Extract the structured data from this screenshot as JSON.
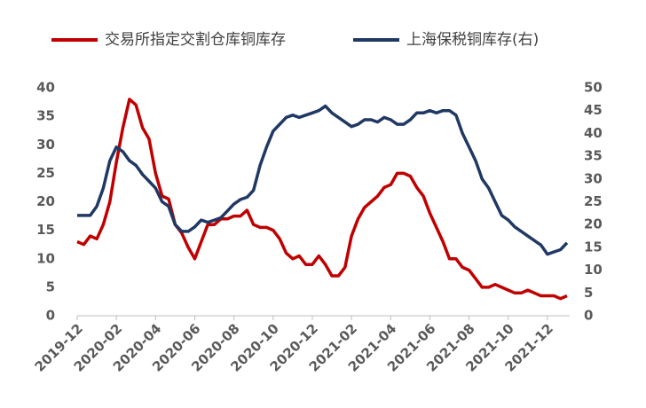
{
  "chart_data": {
    "type": "line",
    "categories": [
      "2019-12",
      null,
      null,
      null,
      null,
      null,
      "2020-02",
      null,
      null,
      null,
      null,
      null,
      "2020-04",
      null,
      null,
      null,
      null,
      null,
      "2020-06",
      null,
      null,
      null,
      null,
      null,
      "2020-08",
      null,
      null,
      null,
      null,
      null,
      "2020-10",
      null,
      null,
      null,
      null,
      null,
      "2020-12",
      null,
      null,
      null,
      null,
      null,
      "2021-02",
      null,
      null,
      null,
      null,
      null,
      "2021-04",
      null,
      null,
      null,
      null,
      null,
      "2021-06",
      null,
      null,
      null,
      null,
      null,
      "2021-08",
      null,
      null,
      null,
      null,
      null,
      "2021-10",
      null,
      null,
      null,
      null,
      null,
      "2021-12",
      null,
      null,
      null
    ],
    "series": [
      {
        "name": "交易所指定交割仓库铜库存",
        "color": "#c00000",
        "values": [
          13,
          12.5,
          14,
          13.5,
          16,
          20,
          27,
          33,
          38,
          37,
          33,
          31,
          25,
          21,
          20.5,
          16,
          14.5,
          12,
          10,
          13,
          16,
          16,
          17,
          17,
          17.5,
          17.5,
          18.5,
          16,
          15.5,
          15.5,
          15,
          13.5,
          11,
          10,
          10.5,
          9,
          9,
          10.5,
          9,
          7,
          7,
          8.5,
          14,
          17,
          19,
          20,
          21,
          22.5,
          23,
          25,
          25,
          24.5,
          22.5,
          21,
          18,
          15.5,
          13,
          10,
          10,
          8.5,
          8,
          6.5,
          5,
          5,
          5.5,
          5,
          4.5,
          4,
          4,
          4.5,
          4,
          3.5,
          3.5,
          3.5,
          3,
          3.5
        ]
      },
      {
        "name": "上海保税铜库存(右)",
        "color": "#203864",
        "axis": "y2",
        "values": [
          22,
          22,
          22,
          24,
          28,
          34,
          37,
          36,
          34,
          33,
          31,
          29.5,
          28,
          25,
          24,
          20,
          18.5,
          18.5,
          19.5,
          21,
          20.5,
          21,
          21.5,
          23,
          24.5,
          25.5,
          26,
          27.5,
          33,
          37,
          40.5,
          42,
          43.5,
          44,
          43.5,
          44,
          44.5,
          45,
          46,
          44.5,
          43.5,
          42.5,
          41.5,
          42,
          43,
          43,
          42.5,
          43.5,
          43,
          42,
          42,
          43,
          44.5,
          44.5,
          45,
          44.5,
          45,
          45,
          44,
          40,
          37,
          34,
          30,
          28,
          25,
          22,
          21,
          19.5,
          18.5,
          17.5,
          16.5,
          15.5,
          13.5,
          14,
          14.5,
          16
        ]
      }
    ],
    "ylim": [
      0,
      40
    ],
    "yticks": [
      0,
      5,
      10,
      15,
      20,
      25,
      30,
      35,
      40
    ],
    "y2lim": [
      0,
      50
    ],
    "y2ticks": [
      0,
      5,
      10,
      15,
      20,
      25,
      30,
      35,
      40,
      45,
      50
    ]
  }
}
